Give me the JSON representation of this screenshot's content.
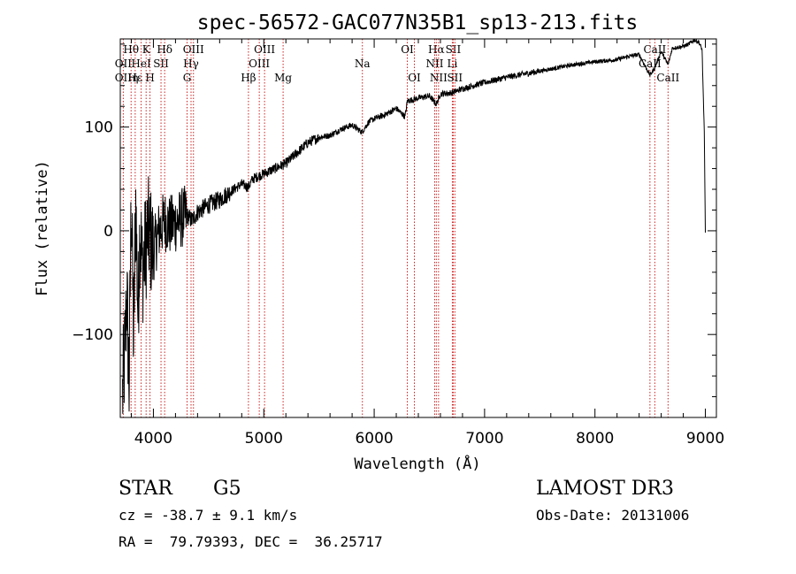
{
  "chart_data": {
    "type": "line",
    "title": "spec-56572-GAC077N35B1_sp13-213.fits",
    "xlabel": "Wavelength (Å)",
    "ylabel": "Flux (relative)",
    "xlim": [
      3700,
      9100
    ],
    "ylim": [
      -180,
      185
    ],
    "xticks": [
      4000,
      5000,
      6000,
      7000,
      8000,
      9000
    ],
    "yticks": [
      -100,
      0,
      100
    ],
    "x_minor_step": 200,
    "y_minor_step": 20,
    "spectrum": {
      "x": [
        3720,
        3740,
        3760,
        3780,
        3800,
        3820,
        3840,
        3860,
        3880,
        3900,
        3950,
        4000,
        4050,
        4100,
        4150,
        4200,
        4250,
        4300,
        4350,
        4400,
        4500,
        4600,
        4700,
        4800,
        4860,
        4900,
        5000,
        5100,
        5200,
        5300,
        5400,
        5500,
        5600,
        5700,
        5800,
        5890,
        5950,
        6000,
        6100,
        6200,
        6280,
        6300,
        6400,
        6500,
        6563,
        6600,
        6700,
        6800,
        6900,
        7000,
        7200,
        7400,
        7600,
        7800,
        8000,
        8200,
        8300,
        8400,
        8498,
        8542,
        8600,
        8662,
        8700,
        8800,
        8850,
        8900,
        8940,
        8970,
        8990,
        9000
      ],
      "y": [
        -160,
        -120,
        -60,
        -150,
        40,
        -110,
        30,
        -80,
        10,
        -40,
        0,
        -20,
        0,
        10,
        5,
        8,
        12,
        15,
        10,
        18,
        25,
        30,
        38,
        45,
        42,
        50,
        55,
        60,
        65,
        75,
        85,
        90,
        92,
        98,
        102,
        95,
        105,
        108,
        112,
        118,
        110,
        125,
        128,
        130,
        122,
        132,
        133,
        137,
        140,
        143,
        148,
        152,
        156,
        160,
        163,
        165,
        168,
        170,
        150,
        157,
        173,
        160,
        176,
        178,
        180,
        184,
        182,
        175,
        95,
        0
      ],
      "noise": {
        "amplitude": [
          55,
          30,
          9,
          5,
          3,
          2,
          2
        ],
        "breaks": [
          3700,
          4000,
          4300,
          4700,
          5500,
          7500,
          9100
        ]
      }
    },
    "spectral_lines": [
      {
        "label": "Hθ",
        "wavelength": 3798,
        "row": 0
      },
      {
        "label": "OII",
        "wavelength": 3727,
        "row": 1
      },
      {
        "label": "OII",
        "wavelength": 3727,
        "row": 2
      },
      {
        "label": "Hε",
        "wavelength": 3835,
        "row": 2
      },
      {
        "label": "HeI",
        "wavelength": 3889,
        "row": 1
      },
      {
        "label": "η",
        "wavelength": 3835,
        "row": 2
      },
      {
        "label": "K",
        "wavelength": 3934,
        "row": 0
      },
      {
        "label": "SII",
        "wavelength": 4069,
        "row": 1
      },
      {
        "label": "H",
        "wavelength": 3969,
        "row": 2
      },
      {
        "label": "Hδ",
        "wavelength": 4102,
        "row": 0
      },
      {
        "label": "OIII",
        "wavelength": 4363,
        "row": 0
      },
      {
        "label": "Hγ",
        "wavelength": 4341,
        "row": 1
      },
      {
        "label": "G",
        "wavelength": 4305,
        "row": 2
      },
      {
        "label": "OIII",
        "wavelength": 5007,
        "row": 0
      },
      {
        "label": "OIII",
        "wavelength": 4959,
        "row": 1
      },
      {
        "label": "Hβ",
        "wavelength": 4861,
        "row": 2
      },
      {
        "label": "Mg",
        "wavelength": 5175,
        "row": 2
      },
      {
        "label": "Na",
        "wavelength": 5893,
        "row": 1
      },
      {
        "label": "OI",
        "wavelength": 6300,
        "row": 0
      },
      {
        "label": "OI",
        "wavelength": 6364,
        "row": 2
      },
      {
        "label": "Hα",
        "wavelength": 6563,
        "row": 0
      },
      {
        "label": "SII",
        "wavelength": 6716,
        "row": 0
      },
      {
        "label": "NII",
        "wavelength": 6548,
        "row": 1
      },
      {
        "label": "Li",
        "wavelength": 6708,
        "row": 1
      },
      {
        "label": "NII",
        "wavelength": 6583,
        "row": 2
      },
      {
        "label": "SII",
        "wavelength": 6731,
        "row": 2
      },
      {
        "label": "CaII",
        "wavelength": 8542,
        "row": 0
      },
      {
        "label": "CaII",
        "wavelength": 8498,
        "row": 1
      },
      {
        "label": "CaII",
        "wavelength": 8662,
        "row": 2
      }
    ],
    "line_color": "#cc2222",
    "spectrum_color": "#000000"
  },
  "info": {
    "object_class": "STAR",
    "subclass": "G5",
    "survey": "LAMOST DR3",
    "velocity": "cz = -38.7 ± 9.1 km/s",
    "obs_date": "Obs-Date: 20131006",
    "coords": "RA =  79.79393, DEC =  36.25717"
  }
}
